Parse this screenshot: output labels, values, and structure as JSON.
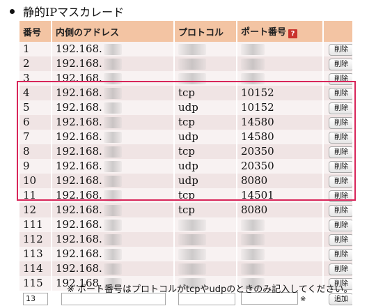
{
  "section": {
    "title": "静的IPマスカレード"
  },
  "table": {
    "headers": {
      "number": "番号",
      "internal_address": "内側のアドレス",
      "protocol": "プロトコル",
      "port_number": "ポート番号",
      "help_icon": "?"
    },
    "delete_label": "削除",
    "add_label": "追加",
    "note_mark": "※",
    "rows": [
      {
        "number": "1",
        "address": "192.168.",
        "protocol": "",
        "port": ""
      },
      {
        "number": "2",
        "address": "192.168.",
        "protocol": "",
        "port": ""
      },
      {
        "number": "3",
        "address": "192.168.",
        "protocol": "",
        "port": ""
      },
      {
        "number": "4",
        "address": "192.168.",
        "protocol": "tcp",
        "port": "10152"
      },
      {
        "number": "5",
        "address": "192.168.",
        "protocol": "udp",
        "port": "10152"
      },
      {
        "number": "6",
        "address": "192.168.",
        "protocol": "tcp",
        "port": "14580"
      },
      {
        "number": "7",
        "address": "192.168.",
        "protocol": "udp",
        "port": "14580"
      },
      {
        "number": "8",
        "address": "192.168.",
        "protocol": "tcp",
        "port": "20350"
      },
      {
        "number": "9",
        "address": "192.168.",
        "protocol": "udp",
        "port": "20350"
      },
      {
        "number": "10",
        "address": "192.168.",
        "protocol": "udp",
        "port": "8080"
      },
      {
        "number": "11",
        "address": "192.168.",
        "protocol": "tcp",
        "port": "14501"
      },
      {
        "number": "12",
        "address": "192.168.",
        "protocol": "tcp",
        "port": "8080"
      },
      {
        "number": "111",
        "address": "192.168.",
        "protocol": "",
        "port": ""
      },
      {
        "number": "112",
        "address": "192.168.",
        "protocol": "",
        "port": ""
      },
      {
        "number": "113",
        "address": "192.168.",
        "protocol": "",
        "port": ""
      },
      {
        "number": "114",
        "address": "192.168.",
        "protocol": "",
        "port": ""
      },
      {
        "number": "115",
        "address": "192.168.",
        "protocol": "",
        "port": ""
      }
    ],
    "new_entry": {
      "number_value": "13",
      "address_value": "",
      "protocol_value": "",
      "port_value": ""
    }
  },
  "footnote": "※ ポート番号はプロトコルがtcpやudpのときのみ記入してください。",
  "colors": {
    "header_bg": "#f3c4a3",
    "row_light": "#f8f2f2",
    "row_dark": "#f0e4e4",
    "highlight": "#d8265a"
  }
}
